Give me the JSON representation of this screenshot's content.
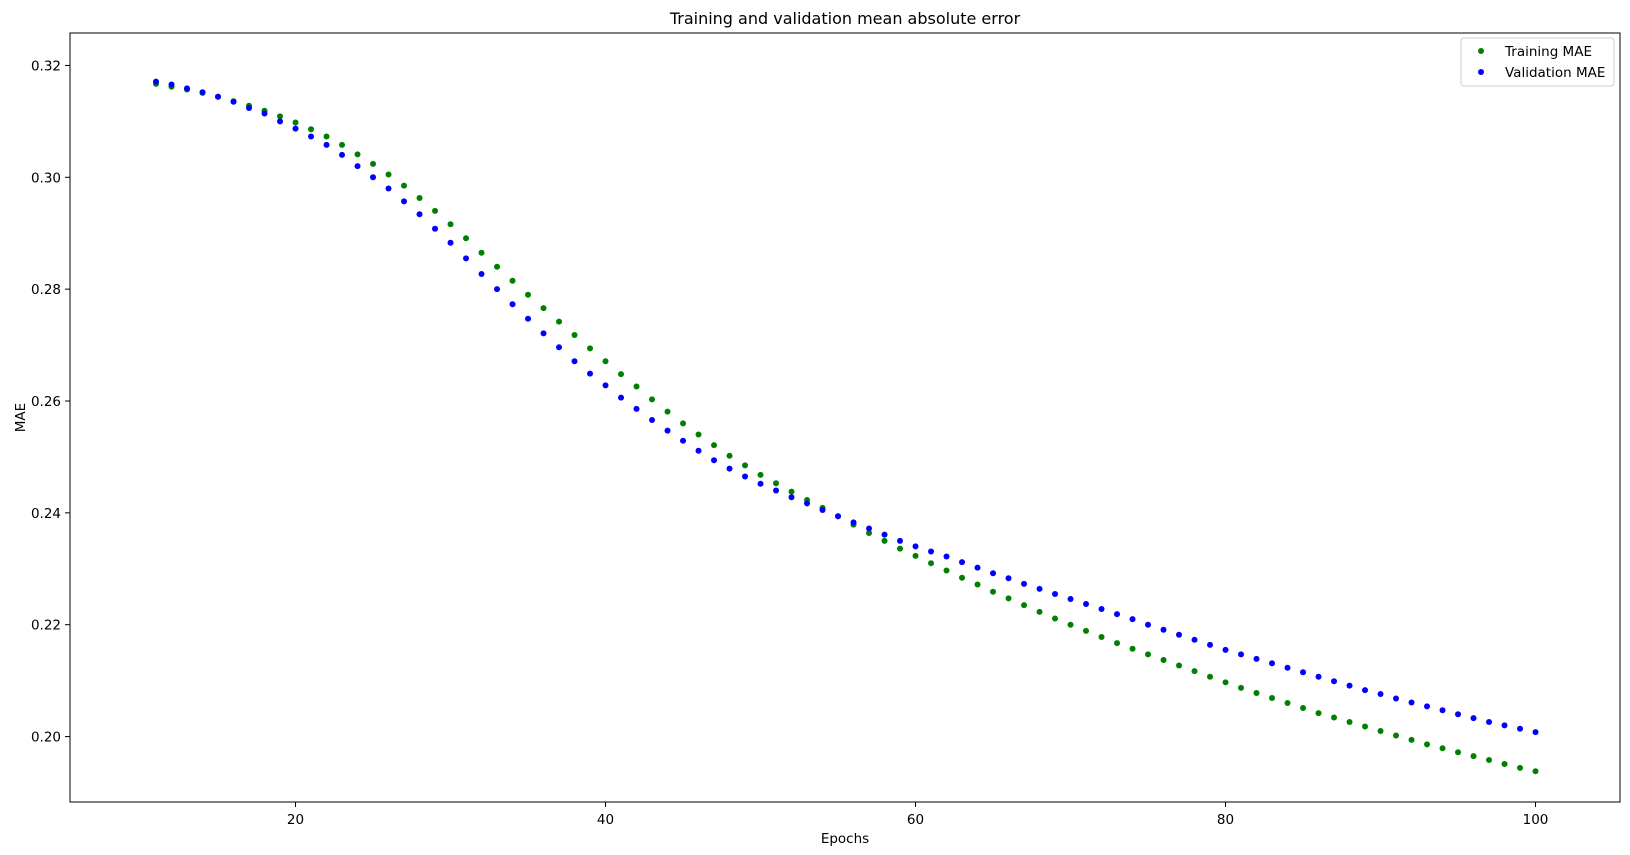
{
  "chart_data": {
    "type": "scatter",
    "title": "Training and validation mean absolute error",
    "xlabel": "Epochs",
    "ylabel": "MAE",
    "xlim": [
      5.45,
      105.45
    ],
    "ylim": [
      0.1883,
      0.3258
    ],
    "xticks": [
      20,
      40,
      60,
      80,
      100
    ],
    "yticks": [
      0.2,
      0.22,
      0.24,
      0.26,
      0.28,
      0.3,
      0.32
    ],
    "ytick_labels": [
      "0.20",
      "0.22",
      "0.24",
      "0.26",
      "0.28",
      "0.30",
      "0.32"
    ],
    "grid": false,
    "legend": "top-right",
    "x": [
      11,
      12,
      13,
      14,
      15,
      16,
      17,
      18,
      19,
      20,
      21,
      22,
      23,
      24,
      25,
      26,
      27,
      28,
      29,
      30,
      31,
      32,
      33,
      34,
      35,
      36,
      37,
      38,
      39,
      40,
      41,
      42,
      43,
      44,
      45,
      46,
      47,
      48,
      49,
      50,
      51,
      52,
      53,
      54,
      55,
      56,
      57,
      58,
      59,
      60,
      61,
      62,
      63,
      64,
      65,
      66,
      67,
      68,
      69,
      70,
      71,
      72,
      73,
      74,
      75,
      76,
      77,
      78,
      79,
      80,
      81,
      82,
      83,
      84,
      85,
      86,
      87,
      88,
      89,
      90,
      91,
      92,
      93,
      94,
      95,
      96,
      97,
      98,
      99,
      100
    ],
    "series": [
      {
        "name": "Training MAE",
        "color": "#008000",
        "marker": "dot",
        "values": [
          0.3167,
          0.3162,
          0.3157,
          0.3151,
          0.3144,
          0.3136,
          0.3128,
          0.3119,
          0.3109,
          0.3098,
          0.3086,
          0.3073,
          0.3058,
          0.3041,
          0.3024,
          0.3005,
          0.2985,
          0.2963,
          0.294,
          0.2916,
          0.2891,
          0.2865,
          0.284,
          0.2815,
          0.279,
          0.2766,
          0.2742,
          0.2718,
          0.2694,
          0.2671,
          0.2648,
          0.2626,
          0.2603,
          0.2581,
          0.256,
          0.254,
          0.2521,
          0.2502,
          0.2485,
          0.2468,
          0.2453,
          0.2438,
          0.2423,
          0.2409,
          0.2394,
          0.2379,
          0.2364,
          0.235,
          0.2336,
          0.2323,
          0.231,
          0.2297,
          0.2284,
          0.2272,
          0.2259,
          0.2247,
          0.2235,
          0.2223,
          0.2211,
          0.22,
          0.2189,
          0.2178,
          0.2167,
          0.2157,
          0.2147,
          0.2137,
          0.2127,
          0.2117,
          0.2107,
          0.2097,
          0.2087,
          0.2078,
          0.2069,
          0.206,
          0.2051,
          0.2042,
          0.2034,
          0.2026,
          0.2018,
          0.201,
          0.2002,
          0.1994,
          0.1986,
          0.1979,
          0.1972,
          0.1965,
          0.1958,
          0.1951,
          0.1944,
          0.1938
        ]
      },
      {
        "name": "Validation MAE",
        "color": "#0000ff",
        "marker": "dot",
        "values": [
          0.3171,
          0.3166,
          0.3159,
          0.3152,
          0.3144,
          0.3135,
          0.3124,
          0.3114,
          0.31,
          0.3087,
          0.3073,
          0.3058,
          0.304,
          0.302,
          0.3,
          0.298,
          0.2957,
          0.2934,
          0.2908,
          0.2883,
          0.2855,
          0.2827,
          0.28,
          0.2773,
          0.2747,
          0.2721,
          0.2696,
          0.2671,
          0.2649,
          0.2628,
          0.2606,
          0.2586,
          0.2566,
          0.2547,
          0.2529,
          0.2511,
          0.2494,
          0.2479,
          0.2465,
          0.2452,
          0.244,
          0.2428,
          0.2417,
          0.2405,
          0.2394,
          0.2383,
          0.2372,
          0.2361,
          0.235,
          0.234,
          0.2331,
          0.2322,
          0.2312,
          0.2302,
          0.2292,
          0.2283,
          0.2273,
          0.2264,
          0.2255,
          0.2246,
          0.2237,
          0.2228,
          0.2219,
          0.221,
          0.22,
          0.2191,
          0.2182,
          0.2173,
          0.2164,
          0.2155,
          0.2147,
          0.2139,
          0.2131,
          0.2123,
          0.2115,
          0.2107,
          0.2099,
          0.2091,
          0.2083,
          0.2076,
          0.2068,
          0.2061,
          0.2054,
          0.2047,
          0.204,
          0.2033,
          0.2026,
          0.202,
          0.2014,
          0.2008
        ]
      }
    ]
  }
}
